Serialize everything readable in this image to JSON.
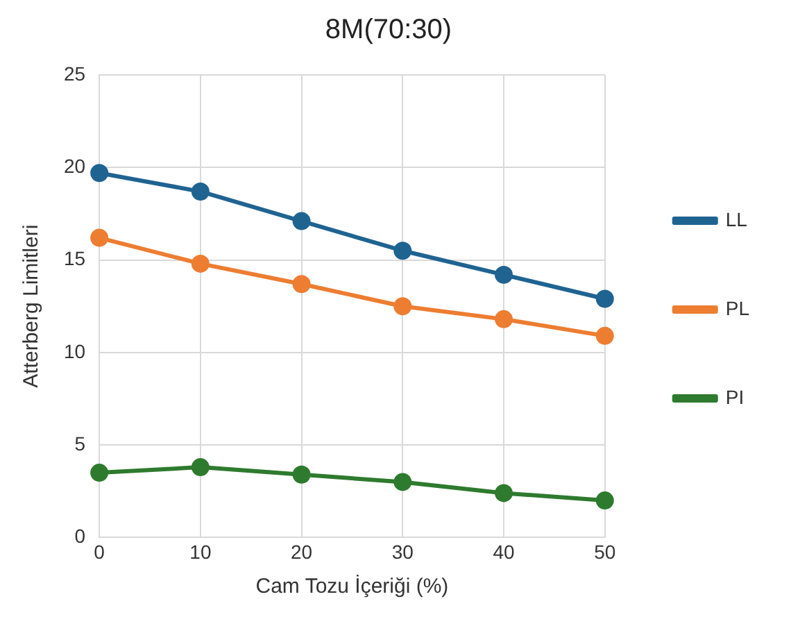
{
  "chart_data": {
    "type": "line",
    "title": "8M(70:30)",
    "xlabel": "Cam Tozu İçeriği (%)",
    "ylabel": "Atterberg Limitleri",
    "x": [
      0,
      10,
      20,
      30,
      40,
      50
    ],
    "series": [
      {
        "name": "LL",
        "color": "#1f6391",
        "values": [
          19.7,
          18.7,
          17.1,
          15.5,
          14.2,
          12.9
        ]
      },
      {
        "name": "PL",
        "color": "#ed7d31",
        "values": [
          16.2,
          14.8,
          13.7,
          12.5,
          11.8,
          10.9
        ]
      },
      {
        "name": "PI",
        "color": "#2e7a2e",
        "values": [
          3.5,
          3.8,
          3.4,
          3.0,
          2.4,
          2.0
        ]
      }
    ],
    "xlim": [
      0,
      50
    ],
    "xticks": [
      0,
      10,
      20,
      30,
      40,
      50
    ],
    "ylim": [
      0,
      25
    ],
    "yticks": [
      0,
      5,
      10,
      15,
      20,
      25
    ],
    "grid": true,
    "legend": "right",
    "marker": "circle",
    "line_style": "solid"
  }
}
